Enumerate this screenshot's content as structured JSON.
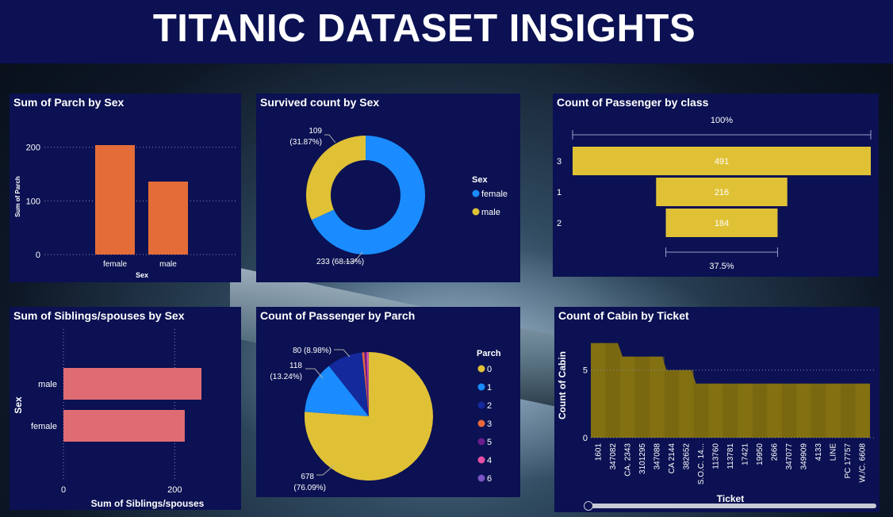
{
  "title": "TITANIC DATASET INSIGHTS",
  "colors": {
    "panel_bg": "#0b1152",
    "orange": "#e46c38",
    "pink": "#e06c73",
    "gold": "#e0c136",
    "blue": "#1a8cff",
    "navy": "#14299b",
    "parch3": "#e9683d",
    "parch5": "#6b1c8c",
    "parch4": "#e64fa4",
    "parch6": "#7a54c5",
    "cabin_bar": "#7a6810"
  },
  "chart_data": [
    {
      "id": "parch_by_sex",
      "type": "bar",
      "title": "Sum of Parch by Sex",
      "xlabel": "Sex",
      "ylabel": "Sum of Parch",
      "categories": [
        "female",
        "male"
      ],
      "values": [
        204,
        136
      ],
      "ylim": [
        0,
        204
      ],
      "yticks": [
        0,
        100,
        200
      ],
      "ytick_labels": [
        "0",
        "100",
        "200"
      ],
      "grid": true
    },
    {
      "id": "survived_by_sex",
      "type": "pie",
      "donut": true,
      "title": "Survived count by Sex",
      "legend_title": "Sex",
      "legend": [
        "female",
        "male"
      ],
      "categories": [
        "female",
        "male"
      ],
      "values": [
        233,
        109
      ],
      "labels": [
        {
          "line1": "233 (68.13%)",
          "line2": ""
        },
        {
          "line1": "109",
          "line2": "(31.87%)"
        }
      ],
      "legend_position": "right"
    },
    {
      "id": "passenger_by_class",
      "type": "bar",
      "orientation": "funnel",
      "title": "Count of Passenger by class",
      "categories": [
        "3",
        "1",
        "2"
      ],
      "values": [
        491,
        216,
        184
      ],
      "value_labels": [
        "491",
        "216",
        "184"
      ],
      "top_percent": "100%",
      "bottom_percent": "37.5%"
    },
    {
      "id": "siblings_by_sex",
      "type": "bar",
      "orientation": "horizontal",
      "title": "Sum of Siblings/spouses by Sex",
      "xlabel": "Sum of Siblings/spouses",
      "ylabel": "Sex",
      "categories": [
        "male",
        "female"
      ],
      "values": [
        248,
        218
      ],
      "xlim": [
        0,
        248
      ],
      "xticks": [
        0,
        200
      ],
      "xtick_labels": [
        "0",
        "200"
      ],
      "grid": true
    },
    {
      "id": "passenger_by_parch",
      "type": "pie",
      "title": "Count of Passenger by Parch",
      "legend_title": "Parch",
      "legend": [
        "0",
        "1",
        "2",
        "3",
        "5",
        "4",
        "6"
      ],
      "categories": [
        "0",
        "1",
        "2",
        "3",
        "5",
        "4",
        "6"
      ],
      "values": [
        678,
        118,
        80,
        5,
        5,
        4,
        1
      ],
      "labels": [
        {
          "line1": "678",
          "line2": "(76.09%)"
        },
        {
          "line1": "118",
          "line2": "(13.24%)"
        },
        {
          "line1": "80 (8.98%)",
          "line2": ""
        }
      ],
      "legend_position": "right"
    },
    {
      "id": "cabin_by_ticket",
      "type": "area",
      "title": "Count of Cabin by Ticket",
      "xlabel": "Ticket",
      "ylabel": "Count of Cabin",
      "x": [
        "1601",
        "347082",
        "CA. 2343",
        "3101295",
        "347088",
        "CA 2144",
        "382652",
        "S.O.C. 14...",
        "113760",
        "113781",
        "17421",
        "19950",
        "2666",
        "347077",
        "349909",
        "4133",
        "LINE",
        "PC 17757",
        "W./C. 6608"
      ],
      "values": [
        7,
        7,
        6,
        6,
        6,
        5,
        5,
        4,
        4,
        4,
        4,
        4,
        4,
        4,
        4,
        4,
        4,
        4,
        4
      ],
      "ylim": [
        0,
        7.8
      ],
      "yticks": [
        0,
        5
      ],
      "ytick_labels": [
        "0",
        "5"
      ],
      "grid": true
    }
  ]
}
